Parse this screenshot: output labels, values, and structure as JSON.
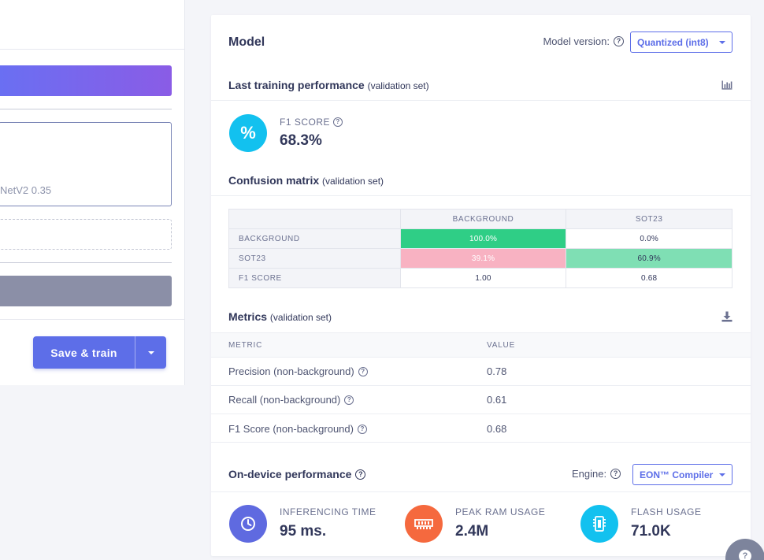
{
  "left_panel": {
    "model_partial_text": "NetV2 0.35",
    "save_button_label": "Save & train"
  },
  "model_card": {
    "title": "Model",
    "version_label": "Model version:",
    "version_selected": "Quantized (int8)",
    "training": {
      "title": "Last training performance",
      "subtitle": "(validation set)",
      "f1_label": "F1 SCORE",
      "f1_value": "68.3%",
      "f1_icon_glyph": "%"
    },
    "confusion_matrix": {
      "title": "Confusion matrix",
      "subtitle": "(validation set)",
      "columns": [
        "BACKGROUND",
        "SOT23"
      ],
      "rows": [
        {
          "label": "BACKGROUND",
          "cells": [
            "100.0%",
            "0.0%"
          ]
        },
        {
          "label": "SOT23",
          "cells": [
            "39.1%",
            "60.9%"
          ]
        },
        {
          "label": "F1 SCORE",
          "cells": [
            "1.00",
            "0.68"
          ]
        }
      ],
      "colors": {
        "correct_high": "#2fce86",
        "correct_mid": "#7fdfb4",
        "incorrect": "#f8b2c2"
      }
    },
    "metrics": {
      "title": "Metrics",
      "subtitle": "(validation set)",
      "col_metric": "METRIC",
      "col_value": "VALUE",
      "rows": [
        {
          "name": "Precision (non-background)",
          "value": "0.78"
        },
        {
          "name": "Recall (non-background)",
          "value": "0.61"
        },
        {
          "name": "F1 Score (non-background)",
          "value": "0.68"
        }
      ]
    },
    "on_device": {
      "title": "On-device performance",
      "engine_label": "Engine:",
      "engine_selected": "EON™ Compiler",
      "stats": [
        {
          "label": "INFERENCING TIME",
          "value": "95 ms.",
          "icon": "clock-icon",
          "color": "#5f6ae0"
        },
        {
          "label": "PEAK RAM USAGE",
          "value": "2.4M",
          "icon": "memory-icon",
          "color": "#f5693e"
        },
        {
          "label": "FLASH USAGE",
          "value": "71.0K",
          "icon": "chip-icon",
          "color": "#12c1ef"
        }
      ]
    }
  },
  "colors": {
    "accent": "#5d6ee8",
    "text_dark": "#31375a",
    "f1_circle": "#12c1ef"
  }
}
